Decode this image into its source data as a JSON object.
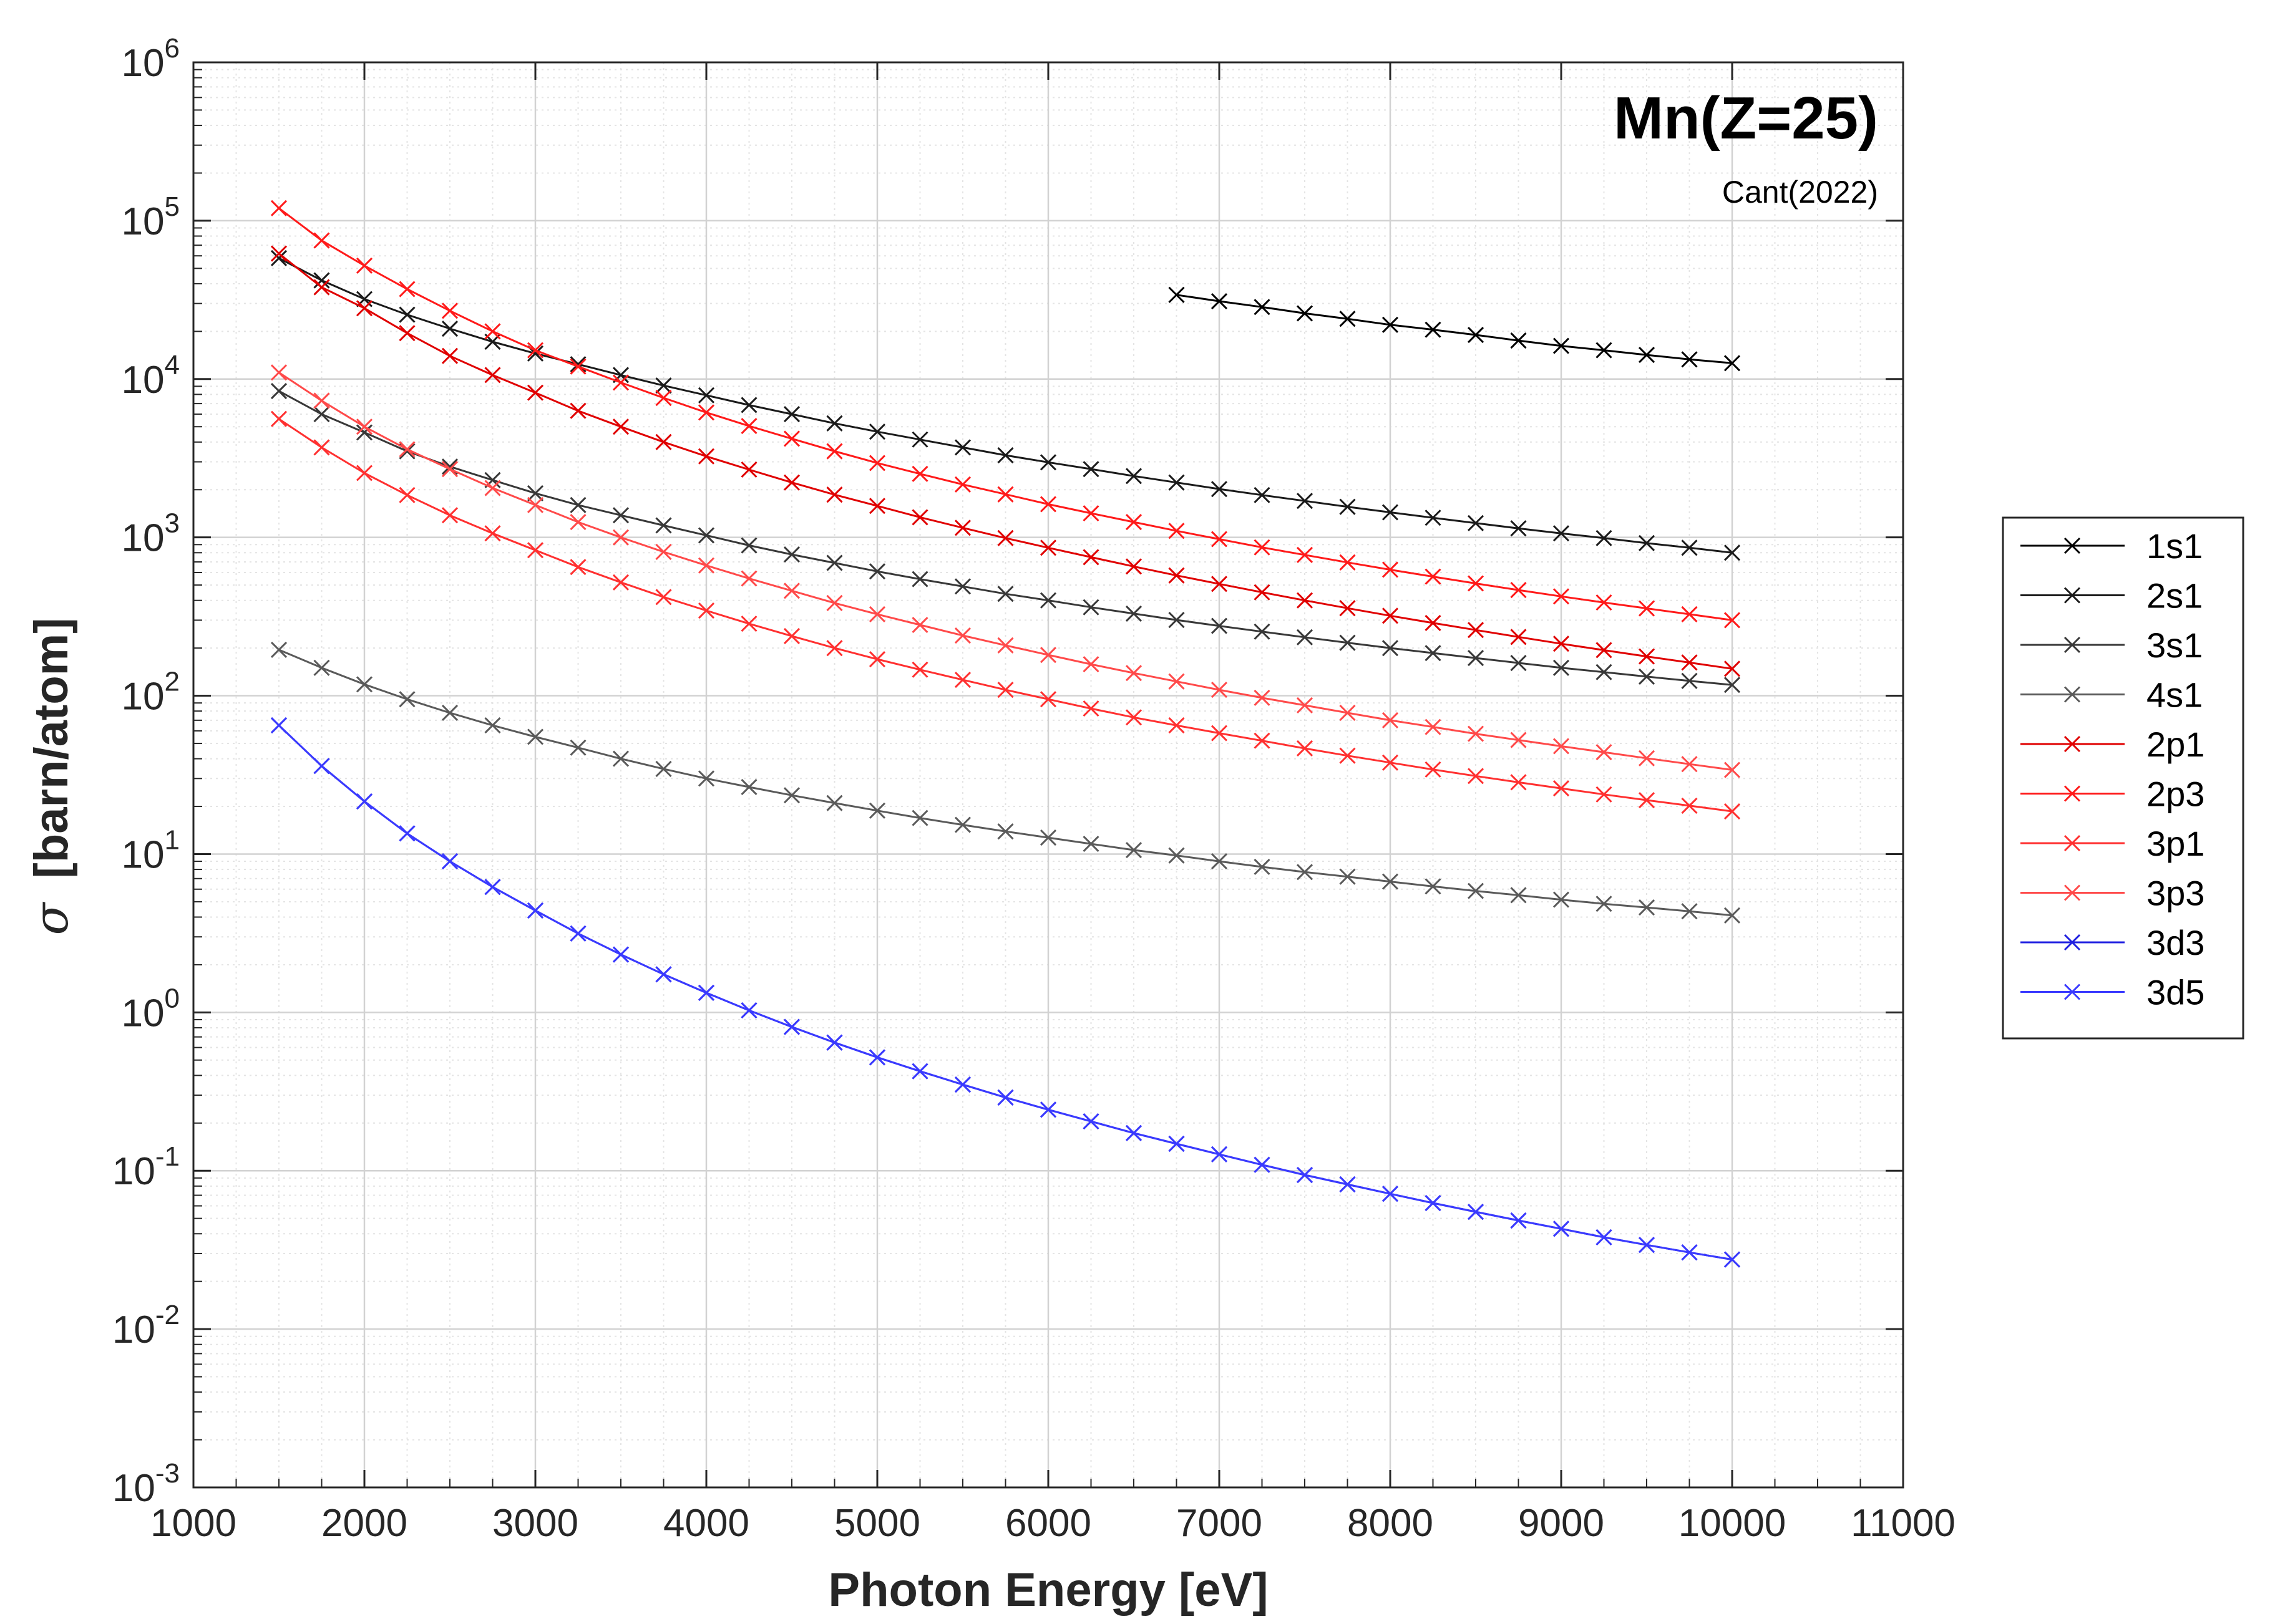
{
  "chart_data": {
    "type": "line",
    "title": "Mn(Z=25)",
    "subtitle": "Cant(2022)",
    "xlabel": "Photon Energy [eV]",
    "ylabel_symbol": "σ",
    "ylabel": "[barn/atom]",
    "xlim": [
      1000,
      11000
    ],
    "ylim": [
      0.001,
      1000000
    ],
    "yscale": "log",
    "grid": true,
    "minor_grid": true,
    "legend_position": "outside-right",
    "x_ticks": [
      "1000",
      "2000",
      "3000",
      "4000",
      "5000",
      "6000",
      "7000",
      "8000",
      "9000",
      "10000",
      "11000"
    ],
    "x_tick_values": [
      1000,
      2000,
      3000,
      4000,
      5000,
      6000,
      7000,
      8000,
      9000,
      10000,
      11000
    ],
    "y_ticks": [
      {
        "value": 0.001,
        "base": "10",
        "exp": "-3"
      },
      {
        "value": 0.01,
        "base": "10",
        "exp": "-2"
      },
      {
        "value": 0.1,
        "base": "10",
        "exp": "-1"
      },
      {
        "value": 1,
        "base": "10",
        "exp": "0"
      },
      {
        "value": 10,
        "base": "10",
        "exp": "1"
      },
      {
        "value": 100,
        "base": "10",
        "exp": "2"
      },
      {
        "value": 1000,
        "base": "10",
        "exp": "3"
      },
      {
        "value": 10000,
        "base": "10",
        "exp": "4"
      },
      {
        "value": 100000,
        "base": "10",
        "exp": "5"
      },
      {
        "value": 1000000,
        "base": "10",
        "exp": "6"
      }
    ],
    "series": [
      {
        "name": "1s1",
        "color": "#000000",
        "marker": "x",
        "x": [
          6750,
          7000,
          7250,
          7500,
          7750,
          8000,
          8250,
          8500,
          8750,
          9000,
          9250,
          9500,
          9750,
          10000
        ],
        "y": [
          34000,
          31000,
          28500,
          26000,
          24000,
          22000,
          20500,
          19000,
          17500,
          16200,
          15200,
          14200,
          13300,
          12600
        ]
      },
      {
        "name": "2s1",
        "color": "#1a1a1a",
        "marker": "x",
        "x": [
          1500,
          1750,
          2000,
          2250,
          2500,
          2750,
          3000,
          3250,
          3500,
          3750,
          4000,
          4250,
          4500,
          4750,
          5000,
          5250,
          5500,
          5750,
          6000,
          6250,
          6500,
          6750,
          7000,
          7250,
          7500,
          7750,
          8000,
          8250,
          8500,
          8750,
          9000,
          9250,
          9500,
          9750,
          10000
        ],
        "y": [
          58000,
          42000,
          32000,
          25500,
          20800,
          17200,
          14500,
          12400,
          10600,
          9100,
          7900,
          6850,
          6000,
          5250,
          4650,
          4150,
          3700,
          3300,
          2980,
          2700,
          2440,
          2220,
          2020,
          1850,
          1700,
          1560,
          1440,
          1330,
          1230,
          1140,
          1060,
          990,
          920,
          860,
          800
        ]
      },
      {
        "name": "3s1",
        "color": "#383838",
        "marker": "x",
        "x": [
          1500,
          1750,
          2000,
          2250,
          2500,
          2750,
          3000,
          3250,
          3500,
          3750,
          4000,
          4250,
          4500,
          4750,
          5000,
          5250,
          5500,
          5750,
          6000,
          6250,
          6500,
          6750,
          7000,
          7250,
          7500,
          7750,
          8000,
          8250,
          8500,
          8750,
          9000,
          9250,
          9500,
          9750,
          10000
        ],
        "y": [
          8400,
          6000,
          4600,
          3500,
          2800,
          2300,
          1900,
          1600,
          1380,
          1190,
          1030,
          890,
          780,
          690,
          610,
          545,
          490,
          440,
          400,
          362,
          330,
          301,
          276,
          254,
          234,
          216,
          200,
          186,
          173,
          161,
          150,
          141,
          132,
          124,
          117
        ]
      },
      {
        "name": "4s1",
        "color": "#5a5a5a",
        "marker": "x",
        "x": [
          1500,
          1750,
          2000,
          2250,
          2500,
          2750,
          3000,
          3250,
          3500,
          3750,
          4000,
          4250,
          4500,
          4750,
          5000,
          5250,
          5500,
          5750,
          6000,
          6250,
          6500,
          6750,
          7000,
          7250,
          7500,
          7750,
          8000,
          8250,
          8500,
          8750,
          9000,
          9250,
          9500,
          9750,
          10000
        ],
        "y": [
          195,
          150,
          118,
          95,
          78,
          65,
          55,
          47,
          40,
          34.5,
          30,
          26.5,
          23.5,
          21,
          18.8,
          16.9,
          15.3,
          13.9,
          12.7,
          11.6,
          10.6,
          9.8,
          9.0,
          8.3,
          7.7,
          7.2,
          6.7,
          6.25,
          5.85,
          5.5,
          5.15,
          4.85,
          4.6,
          4.35,
          4.1
        ]
      },
      {
        "name": "2p1",
        "color": "#e00000",
        "marker": "x",
        "x": [
          1500,
          1750,
          2000,
          2250,
          2500,
          2750,
          3000,
          3250,
          3500,
          3750,
          4000,
          4250,
          4500,
          4750,
          5000,
          5250,
          5500,
          5750,
          6000,
          6250,
          6500,
          6750,
          7000,
          7250,
          7500,
          7750,
          8000,
          8250,
          8500,
          8750,
          9000,
          9250,
          9500,
          9750,
          10000
        ],
        "y": [
          62000,
          38000,
          28000,
          19500,
          14000,
          10600,
          8200,
          6300,
          5000,
          4000,
          3250,
          2680,
          2220,
          1860,
          1580,
          1340,
          1150,
          990,
          860,
          750,
          655,
          575,
          508,
          450,
          400,
          357,
          320,
          288,
          260,
          235,
          213,
          194,
          177,
          162,
          148
        ]
      },
      {
        "name": "2p3",
        "color": "#ff1a1a",
        "marker": "x",
        "x": [
          1500,
          1750,
          2000,
          2250,
          2500,
          2750,
          3000,
          3250,
          3500,
          3750,
          4000,
          4250,
          4500,
          4750,
          5000,
          5250,
          5500,
          5750,
          6000,
          6250,
          6500,
          6750,
          7000,
          7250,
          7500,
          7750,
          8000,
          8250,
          8500,
          8750,
          9000,
          9250,
          9500,
          9750,
          10000
        ],
        "y": [
          120000,
          75000,
          52000,
          37000,
          27000,
          20000,
          15200,
          12000,
          9500,
          7600,
          6150,
          5050,
          4200,
          3500,
          2950,
          2520,
          2160,
          1870,
          1620,
          1420,
          1250,
          1100,
          975,
          865,
          775,
          695,
          625,
          565,
          512,
          465,
          424,
          388,
          356,
          327,
          300
        ]
      },
      {
        "name": "3p1",
        "color": "#ff3030",
        "marker": "x",
        "x": [
          1500,
          1750,
          2000,
          2250,
          2500,
          2750,
          3000,
          3250,
          3500,
          3750,
          4000,
          4250,
          4500,
          4750,
          5000,
          5250,
          5500,
          5750,
          6000,
          6250,
          6500,
          6750,
          7000,
          7250,
          7500,
          7750,
          8000,
          8250,
          8500,
          8750,
          9000,
          9250,
          9500,
          9750,
          10000
        ],
        "y": [
          5600,
          3700,
          2550,
          1850,
          1380,
          1060,
          830,
          650,
          520,
          420,
          345,
          285,
          238,
          200,
          170,
          146,
          126,
          109,
          95,
          83,
          73,
          65,
          58,
          52,
          46.5,
          41.8,
          37.8,
          34.2,
          31.1,
          28.4,
          26,
          23.8,
          21.9,
          20.2,
          18.6
        ]
      },
      {
        "name": "3p3",
        "color": "#ff4a4a",
        "marker": "x",
        "x": [
          1500,
          1750,
          2000,
          2250,
          2500,
          2750,
          3000,
          3250,
          3500,
          3750,
          4000,
          4250,
          4500,
          4750,
          5000,
          5250,
          5500,
          5750,
          6000,
          6250,
          6500,
          6750,
          7000,
          7250,
          7500,
          7750,
          8000,
          8250,
          8500,
          8750,
          9000,
          9250,
          9500,
          9750,
          10000
        ],
        "y": [
          11000,
          7300,
          5000,
          3600,
          2700,
          2050,
          1600,
          1250,
          1000,
          810,
          665,
          550,
          460,
          385,
          327,
          280,
          240,
          208,
          181,
          158,
          139,
          123,
          109,
          97,
          87,
          78,
          70,
          63.5,
          57.5,
          52.5,
          48,
          44,
          40.3,
          37,
          34
        ]
      },
      {
        "name": "3d3",
        "color": "#2020e0",
        "marker": "x",
        "x": [
          1500,
          1750,
          2000,
          2250,
          2500,
          2750,
          3000,
          3250,
          3500,
          3750,
          4000,
          4250,
          4500,
          4750,
          5000,
          5250,
          5500,
          5750,
          6000,
          6250,
          6500,
          6750,
          7000,
          7250,
          7500,
          7750,
          8000,
          8250,
          8500,
          8750,
          9000,
          9250,
          9500,
          9750,
          10000
        ],
        "y": [
          65,
          36,
          21.5,
          13.5,
          9.0,
          6.2,
          4.4,
          3.15,
          2.32,
          1.74,
          1.33,
          1.03,
          0.81,
          0.645,
          0.52,
          0.425,
          0.35,
          0.29,
          0.243,
          0.205,
          0.173,
          0.148,
          0.127,
          0.109,
          0.094,
          0.082,
          0.0715,
          0.0625,
          0.055,
          0.0485,
          0.043,
          0.038,
          0.034,
          0.0305,
          0.0275
        ]
      },
      {
        "name": "3d5",
        "color": "#3a3aff",
        "marker": "x",
        "x": [
          1500,
          1750,
          2000,
          2250,
          2500,
          2750,
          3000,
          3250,
          3500,
          3750,
          4000,
          4250,
          4500,
          4750,
          5000,
          5250,
          5500,
          5750,
          6000,
          6250,
          6500,
          6750,
          7000,
          7250,
          7500,
          7750,
          8000,
          8250,
          8500,
          8750,
          9000,
          9250,
          9500,
          9750,
          10000
        ],
        "y": [
          65,
          36,
          21.5,
          13.5,
          9.0,
          6.2,
          4.4,
          3.15,
          2.32,
          1.74,
          1.33,
          1.03,
          0.81,
          0.645,
          0.52,
          0.425,
          0.35,
          0.29,
          0.243,
          0.205,
          0.173,
          0.148,
          0.127,
          0.109,
          0.094,
          0.082,
          0.0715,
          0.0625,
          0.055,
          0.0485,
          0.043,
          0.038,
          0.034,
          0.0305,
          0.0275
        ]
      }
    ]
  }
}
